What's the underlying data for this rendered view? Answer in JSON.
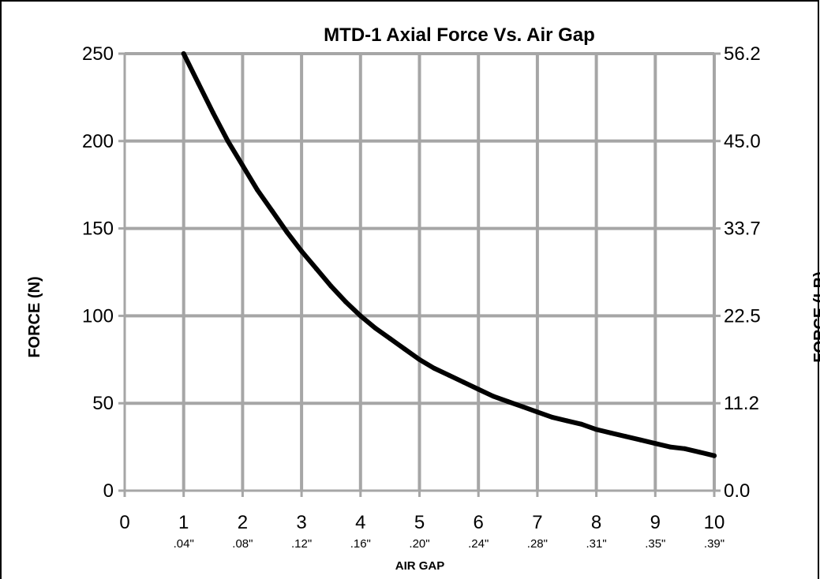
{
  "chart_data": {
    "type": "line",
    "title": "MTD-1 Axial Force Vs. Air Gap",
    "xlabel": "AIR GAP",
    "ylabel": "FORCE (N)",
    "y2label": "FORCE (LB)",
    "xlim": [
      0,
      10
    ],
    "ylim": [
      0,
      250
    ],
    "x_ticks": [
      "0",
      "1",
      "2",
      "3",
      "4",
      "5",
      "6",
      "7",
      "8",
      "9",
      "10"
    ],
    "x_subticks": [
      "",
      ".04\"",
      ".08\"",
      ".12\"",
      ".16\"",
      ".20\"",
      ".24\"",
      ".28\"",
      ".31\"",
      ".35\"",
      ".39\""
    ],
    "y_ticks": [
      "0",
      "50",
      "100",
      "150",
      "200",
      "250"
    ],
    "y2_ticks": [
      "0.0",
      "11.2",
      "22.5",
      "33.7",
      "45.0",
      "56.2"
    ],
    "grid": true,
    "line_color": "#000000",
    "grid_color": "#a6a6a6",
    "series": [
      {
        "x": [
          1.0,
          1.25,
          1.5,
          1.75,
          2.0,
          2.25,
          2.5,
          2.75,
          3.0,
          3.25,
          3.5,
          3.75,
          4.0,
          4.25,
          4.5,
          4.75,
          5.0,
          5.25,
          5.5,
          5.75,
          6.0,
          6.25,
          6.5,
          6.75,
          7.0,
          7.25,
          7.5,
          7.75,
          8.0,
          8.25,
          8.5,
          8.75,
          9.0,
          9.25,
          9.5,
          9.75,
          10.0
        ],
        "values": [
          250,
          233,
          216,
          200,
          186,
          172,
          160,
          148,
          137,
          127,
          117,
          108,
          100,
          93,
          87,
          81,
          75,
          70,
          66,
          62,
          58,
          54,
          51,
          48,
          45,
          42,
          40,
          38,
          35,
          33,
          31,
          29,
          27,
          25,
          24,
          22,
          20
        ]
      }
    ]
  }
}
